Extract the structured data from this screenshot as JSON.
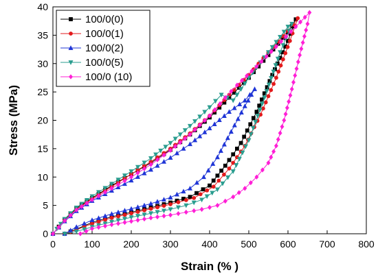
{
  "chart_data": {
    "type": "line",
    "title": "",
    "xlabel": "Strain (% )",
    "ylabel": "Stress (MPa)",
    "xlim": [
      0,
      800
    ],
    "ylim": [
      0,
      40
    ],
    "x_ticks": [
      0,
      100,
      200,
      300,
      400,
      500,
      600,
      700,
      800
    ],
    "y_ticks": [
      0,
      5,
      10,
      15,
      20,
      25,
      30,
      35,
      40
    ],
    "x_tick_labels": [
      "0",
      "100",
      "200",
      "300",
      "400",
      "500",
      "600",
      "700",
      "800"
    ],
    "y_tick_labels": [
      "0",
      "5",
      "10",
      "15",
      "20",
      "25",
      "30",
      "35",
      "40"
    ],
    "grid": false,
    "legend_position": "top-left",
    "series": [
      {
        "name": "100/0(0)",
        "color": "#000000",
        "marker": "square",
        "x": [
          0,
          30,
          60,
          100,
          150,
          200,
          250,
          300,
          350,
          400,
          450,
          500,
          550,
          600,
          620,
          600,
          560,
          520,
          480,
          440,
          400,
          350,
          300,
          250,
          200,
          150,
          100,
          60,
          30
        ],
        "y": [
          0,
          2.5,
          4.5,
          6.3,
          8.5,
          10.5,
          12.5,
          14.8,
          17.5,
          20.5,
          24.0,
          27.5,
          31.5,
          35.5,
          37.8,
          34.0,
          28.0,
          21.5,
          16.0,
          12.0,
          8.5,
          6.5,
          5.5,
          4.6,
          3.8,
          3.0,
          2.0,
          0.8,
          0
        ]
      },
      {
        "name": "100/0(1)",
        "color": "#e31a1c",
        "marker": "circle",
        "x": [
          0,
          30,
          60,
          100,
          150,
          200,
          250,
          300,
          350,
          400,
          450,
          500,
          550,
          600,
          625,
          605,
          570,
          530,
          490,
          450,
          410,
          360,
          300,
          250,
          200,
          150,
          100,
          60,
          30
        ],
        "y": [
          0,
          2.3,
          4.3,
          6.2,
          8.3,
          10.5,
          12.7,
          15.0,
          17.7,
          20.8,
          24.5,
          28.0,
          32.0,
          35.8,
          38.0,
          34.0,
          27.5,
          21.0,
          15.5,
          11.5,
          8.3,
          6.3,
          5.2,
          4.4,
          3.6,
          2.8,
          1.8,
          0.7,
          0
        ]
      },
      {
        "name": "100/0(2)",
        "color": "#1f35d6",
        "marker": "triangle-up",
        "x": [
          0,
          30,
          60,
          100,
          150,
          200,
          250,
          300,
          350,
          400,
          450,
          490,
          515,
          490,
          455,
          420,
          385,
          350,
          300,
          250,
          200,
          150,
          100,
          60,
          30
        ],
        "y": [
          0,
          2.2,
          4.0,
          5.8,
          7.6,
          9.4,
          11.3,
          13.4,
          15.8,
          18.6,
          21.5,
          23.5,
          25.5,
          22.5,
          18.0,
          13.5,
          10.0,
          8.0,
          6.4,
          5.3,
          4.4,
          3.5,
          2.4,
          1.2,
          0
        ]
      },
      {
        "name": "100/0(5)",
        "color": "#2a9d8f",
        "marker": "triangle-down",
        "x": [
          0,
          30,
          60,
          100,
          150,
          200,
          250,
          300,
          350,
          400,
          430,
          460,
          500,
          550,
          600,
          610,
          580,
          540,
          500,
          460,
          420,
          380,
          340,
          300,
          250,
          200,
          150,
          100,
          60,
          30
        ],
        "y": [
          0,
          2.6,
          4.6,
          6.6,
          8.8,
          11.0,
          13.3,
          16.0,
          19.0,
          22.3,
          24.5,
          23.5,
          27.5,
          32.0,
          36.5,
          37.0,
          32.0,
          24.0,
          16.5,
          11.0,
          7.8,
          6.0,
          5.0,
          4.3,
          3.6,
          2.9,
          2.1,
          1.2,
          0.4,
          0
        ]
      },
      {
        "name": "100/0 (10)",
        "color": "#ff1fd6",
        "marker": "diamond",
        "x": [
          0,
          30,
          60,
          100,
          150,
          200,
          250,
          300,
          350,
          400,
          440,
          470,
          520,
          570,
          620,
          655,
          650,
          630,
          610,
          590,
          570,
          550,
          520,
          490,
          460,
          420,
          380,
          340,
          300,
          250,
          200,
          150,
          100,
          70
        ],
        "y": [
          0,
          2.3,
          4.2,
          6.0,
          8.0,
          10.0,
          12.2,
          14.7,
          17.5,
          20.8,
          24.0,
          26.2,
          29.5,
          33.0,
          36.5,
          39.0,
          37.0,
          31.5,
          25.5,
          20.0,
          15.5,
          12.5,
          10.0,
          8.0,
          6.5,
          5.0,
          4.3,
          3.8,
          3.3,
          2.8,
          2.2,
          1.6,
          0.9,
          0
        ]
      }
    ]
  }
}
